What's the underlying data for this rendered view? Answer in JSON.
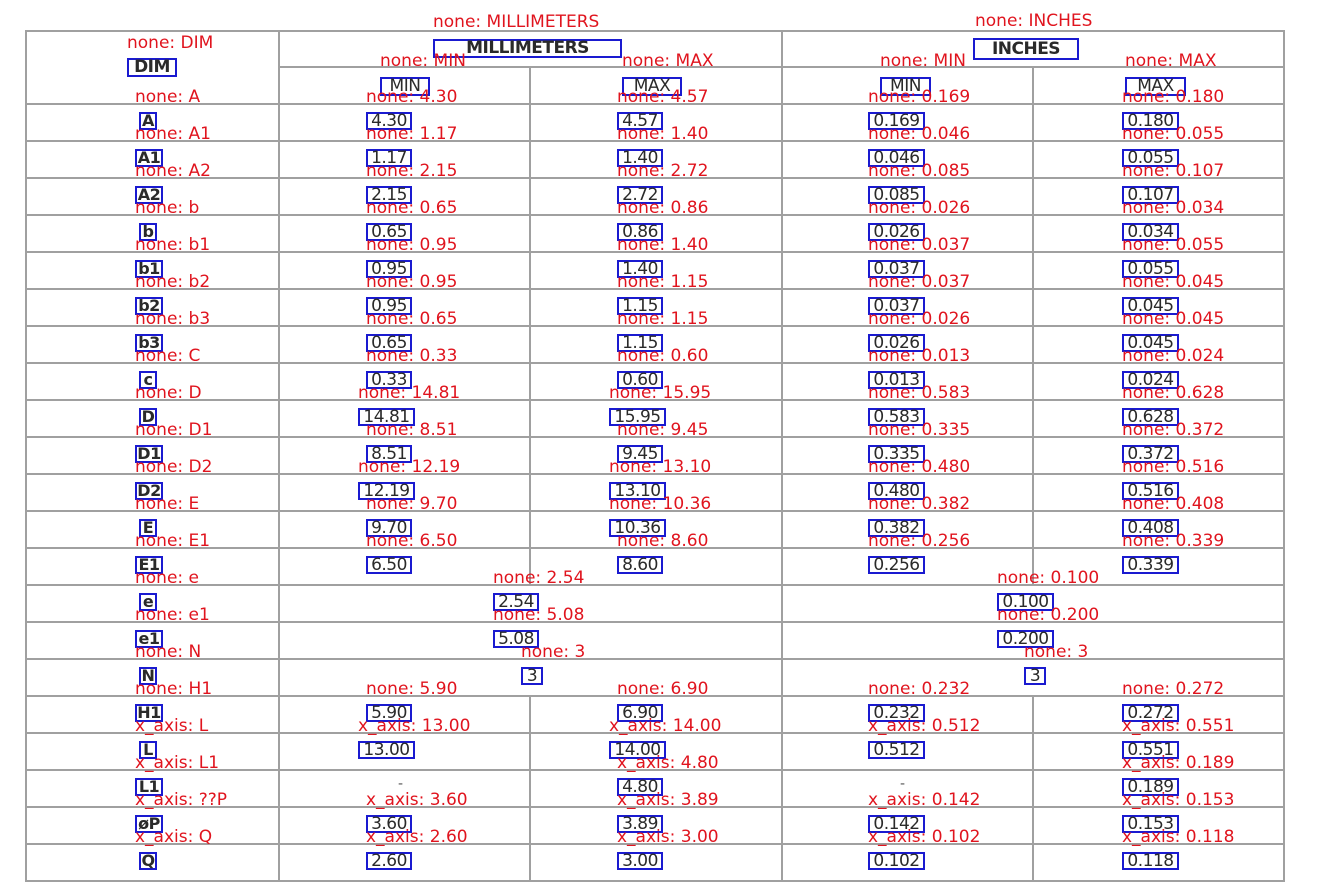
{
  "table": {
    "headers": {
      "dim": {
        "text": "DIM",
        "label": "none: DIM"
      },
      "millimeters": {
        "text": "MILLIMETERS",
        "label": "none: MILLIMETERS"
      },
      "inches": {
        "text": "INCHES",
        "label": "none: INCHES"
      },
      "mm_min": {
        "text": "MIN",
        "label": "none: MIN"
      },
      "mm_max": {
        "text": "MAX",
        "label": "none: MAX"
      },
      "in_min": {
        "text": "MIN",
        "label": "none: MIN"
      },
      "in_max": {
        "text": "MAX",
        "label": "none: MAX"
      }
    },
    "rows": [
      {
        "dim": "A",
        "dim_label": "none: A",
        "cells": [
          {
            "text": "4.30",
            "label": "none: 4.30"
          },
          {
            "text": "4.57",
            "label": "none: 4.57"
          },
          {
            "text": "0.169",
            "label": "none: 0.169"
          },
          {
            "text": "0.180",
            "label": "none: 0.180"
          }
        ]
      },
      {
        "dim": "A1",
        "dim_label": "none: A1",
        "cells": [
          {
            "text": "1.17",
            "label": "none: 1.17"
          },
          {
            "text": "1.40",
            "label": "none: 1.40"
          },
          {
            "text": "0.046",
            "label": "none: 0.046"
          },
          {
            "text": "0.055",
            "label": "none: 0.055"
          }
        ]
      },
      {
        "dim": "A2",
        "dim_label": "none: A2",
        "cells": [
          {
            "text": "2.15",
            "label": "none: 2.15"
          },
          {
            "text": "2.72",
            "label": "none: 2.72"
          },
          {
            "text": "0.085",
            "label": "none: 0.085"
          },
          {
            "text": "0.107",
            "label": "none: 0.107"
          }
        ]
      },
      {
        "dim": "b",
        "dim_label": "none: b",
        "cells": [
          {
            "text": "0.65",
            "label": "none: 0.65"
          },
          {
            "text": "0.86",
            "label": "none: 0.86"
          },
          {
            "text": "0.026",
            "label": "none: 0.026"
          },
          {
            "text": "0.034",
            "label": "none: 0.034"
          }
        ]
      },
      {
        "dim": "b1",
        "dim_label": "none: b1",
        "cells": [
          {
            "text": "0.95",
            "label": "none: 0.95"
          },
          {
            "text": "1.40",
            "label": "none: 1.40"
          },
          {
            "text": "0.037",
            "label": "none: 0.037"
          },
          {
            "text": "0.055",
            "label": "none: 0.055"
          }
        ]
      },
      {
        "dim": "b2",
        "dim_label": "none: b2",
        "cells": [
          {
            "text": "0.95",
            "label": "none: 0.95"
          },
          {
            "text": "1.15",
            "label": "none: 1.15"
          },
          {
            "text": "0.037",
            "label": "none: 0.037"
          },
          {
            "text": "0.045",
            "label": "none: 0.045"
          }
        ]
      },
      {
        "dim": "b3",
        "dim_label": "none: b3",
        "cells": [
          {
            "text": "0.65",
            "label": "none: 0.65"
          },
          {
            "text": "1.15",
            "label": "none: 1.15"
          },
          {
            "text": "0.026",
            "label": "none: 0.026"
          },
          {
            "text": "0.045",
            "label": "none: 0.045"
          }
        ]
      },
      {
        "dim": "c",
        "dim_label": "none: C",
        "cells": [
          {
            "text": "0.33",
            "label": "none: 0.33"
          },
          {
            "text": "0.60",
            "label": "none: 0.60"
          },
          {
            "text": "0.013",
            "label": "none: 0.013"
          },
          {
            "text": "0.024",
            "label": "none: 0.024"
          }
        ]
      },
      {
        "dim": "D",
        "dim_label": "none: D",
        "cells": [
          {
            "text": "14.81",
            "label": "none: 14.81"
          },
          {
            "text": "15.95",
            "label": "none: 15.95"
          },
          {
            "text": "0.583",
            "label": "none: 0.583"
          },
          {
            "text": "0.628",
            "label": "none: 0.628"
          }
        ]
      },
      {
        "dim": "D1",
        "dim_label": "none: D1",
        "cells": [
          {
            "text": "8.51",
            "label": "none: 8.51"
          },
          {
            "text": "9.45",
            "label": "none: 9.45"
          },
          {
            "text": "0.335",
            "label": "none: 0.335"
          },
          {
            "text": "0.372",
            "label": "none: 0.372"
          }
        ]
      },
      {
        "dim": "D2",
        "dim_label": "none: D2",
        "cells": [
          {
            "text": "12.19",
            "label": "none: 12.19"
          },
          {
            "text": "13.10",
            "label": "none: 13.10"
          },
          {
            "text": "0.480",
            "label": "none: 0.480"
          },
          {
            "text": "0.516",
            "label": "none: 0.516"
          }
        ]
      },
      {
        "dim": "E",
        "dim_label": "none: E",
        "cells": [
          {
            "text": "9.70",
            "label": "none: 9.70"
          },
          {
            "text": "10.36",
            "label": "none: 10.36"
          },
          {
            "text": "0.382",
            "label": "none: 0.382"
          },
          {
            "text": "0.408",
            "label": "none: 0.408"
          }
        ]
      },
      {
        "dim": "E1",
        "dim_label": "none: E1",
        "cells": [
          {
            "text": "6.50",
            "label": "none: 6.50"
          },
          {
            "text": "8.60",
            "label": "none: 8.60"
          },
          {
            "text": "0.256",
            "label": "none: 0.256"
          },
          {
            "text": "0.339",
            "label": "none: 0.339"
          }
        ]
      },
      {
        "dim": "e",
        "dim_label": "none: e",
        "mm_merged": {
          "text": "2.54",
          "label": "none: 2.54"
        },
        "in_merged": {
          "text": "0.100",
          "label": "none: 0.100"
        }
      },
      {
        "dim": "e1",
        "dim_label": "none: e1",
        "mm_merged": {
          "text": "5.08",
          "label": "none: 5.08"
        },
        "in_merged": {
          "text": "0.200",
          "label": "none: 0.200"
        }
      },
      {
        "dim": "N",
        "dim_label": "none: N",
        "mm_merged": {
          "text": "3",
          "label": "none: 3"
        },
        "in_merged": {
          "text": "3",
          "label": "none: 3"
        }
      },
      {
        "dim": "H1",
        "dim_label": "none: H1",
        "cells": [
          {
            "text": "5.90",
            "label": "none: 5.90"
          },
          {
            "text": "6.90",
            "label": "none: 6.90"
          },
          {
            "text": "0.232",
            "label": "none: 0.232"
          },
          {
            "text": "0.272",
            "label": "none: 0.272"
          }
        ]
      },
      {
        "dim": "L",
        "dim_label": "x_axis: L",
        "cells": [
          {
            "text": "13.00",
            "label": "x_axis: 13.00"
          },
          {
            "text": "14.00",
            "label": "x_axis: 14.00"
          },
          {
            "text": "0.512",
            "label": "x_axis: 0.512"
          },
          {
            "text": "0.551",
            "label": "x_axis: 0.551"
          }
        ]
      },
      {
        "dim": "L1",
        "dim_label": "x_axis: L1",
        "cells": [
          {
            "text": "-",
            "label": ""
          },
          {
            "text": "4.80",
            "label": "x_axis: 4.80"
          },
          {
            "text": "-",
            "label": ""
          },
          {
            "text": "0.189",
            "label": "x_axis: 0.189"
          }
        ]
      },
      {
        "dim": "øP",
        "dim_label": "x_axis: ??P",
        "cells": [
          {
            "text": "3.60",
            "label": "x_axis: 3.60"
          },
          {
            "text": "3.89",
            "label": "x_axis: 3.89"
          },
          {
            "text": "0.142",
            "label": "x_axis: 0.142"
          },
          {
            "text": "0.153",
            "label": "x_axis: 0.153"
          }
        ]
      },
      {
        "dim": "Q",
        "dim_label": "x_axis: Q",
        "cells": [
          {
            "text": "2.60",
            "label": "x_axis: 2.60"
          },
          {
            "text": "3.00",
            "label": "x_axis: 3.00"
          },
          {
            "text": "0.102",
            "label": "x_axis: 0.102"
          },
          {
            "text": "0.118",
            "label": "x_axis: 0.118"
          }
        ]
      }
    ]
  },
  "colors": {
    "box": "#1a1ad0",
    "label": "#e0141e",
    "grid": "#a0a0a0"
  }
}
